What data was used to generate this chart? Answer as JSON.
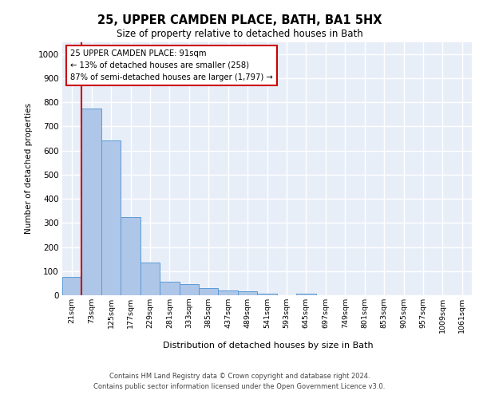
{
  "title": "25, UPPER CAMDEN PLACE, BATH, BA1 5HX",
  "subtitle": "Size of property relative to detached houses in Bath",
  "xlabel": "Distribution of detached houses by size in Bath",
  "ylabel": "Number of detached properties",
  "categories": [
    "21sqm",
    "73sqm",
    "125sqm",
    "177sqm",
    "229sqm",
    "281sqm",
    "333sqm",
    "385sqm",
    "437sqm",
    "489sqm",
    "541sqm",
    "593sqm",
    "645sqm",
    "697sqm",
    "749sqm",
    "801sqm",
    "853sqm",
    "905sqm",
    "957sqm",
    "1009sqm",
    "1061sqm"
  ],
  "bar_heights": [
    75,
    775,
    640,
    325,
    135,
    55,
    45,
    30,
    20,
    15,
    8,
    0,
    8,
    0,
    0,
    0,
    0,
    0,
    0,
    0,
    0
  ],
  "bar_color": "#aec6e8",
  "bar_edge_color": "#5b9bd5",
  "property_line_bin": 1,
  "property_line_color": "#cc0000",
  "annotation_line1": "25 UPPER CAMDEN PLACE: 91sqm",
  "annotation_line2": "← 13% of detached houses are smaller (258)",
  "annotation_line3": "87% of semi-detached houses are larger (1,797) →",
  "annotation_box_edgecolor": "#cc0000",
  "ylim": [
    0,
    1050
  ],
  "yticks": [
    0,
    100,
    200,
    300,
    400,
    500,
    600,
    700,
    800,
    900,
    1000
  ],
  "background_color": "#e8eef8",
  "grid_color": "#ffffff",
  "footer_line1": "Contains HM Land Registry data © Crown copyright and database right 2024.",
  "footer_line2": "Contains public sector information licensed under the Open Government Licence v3.0."
}
